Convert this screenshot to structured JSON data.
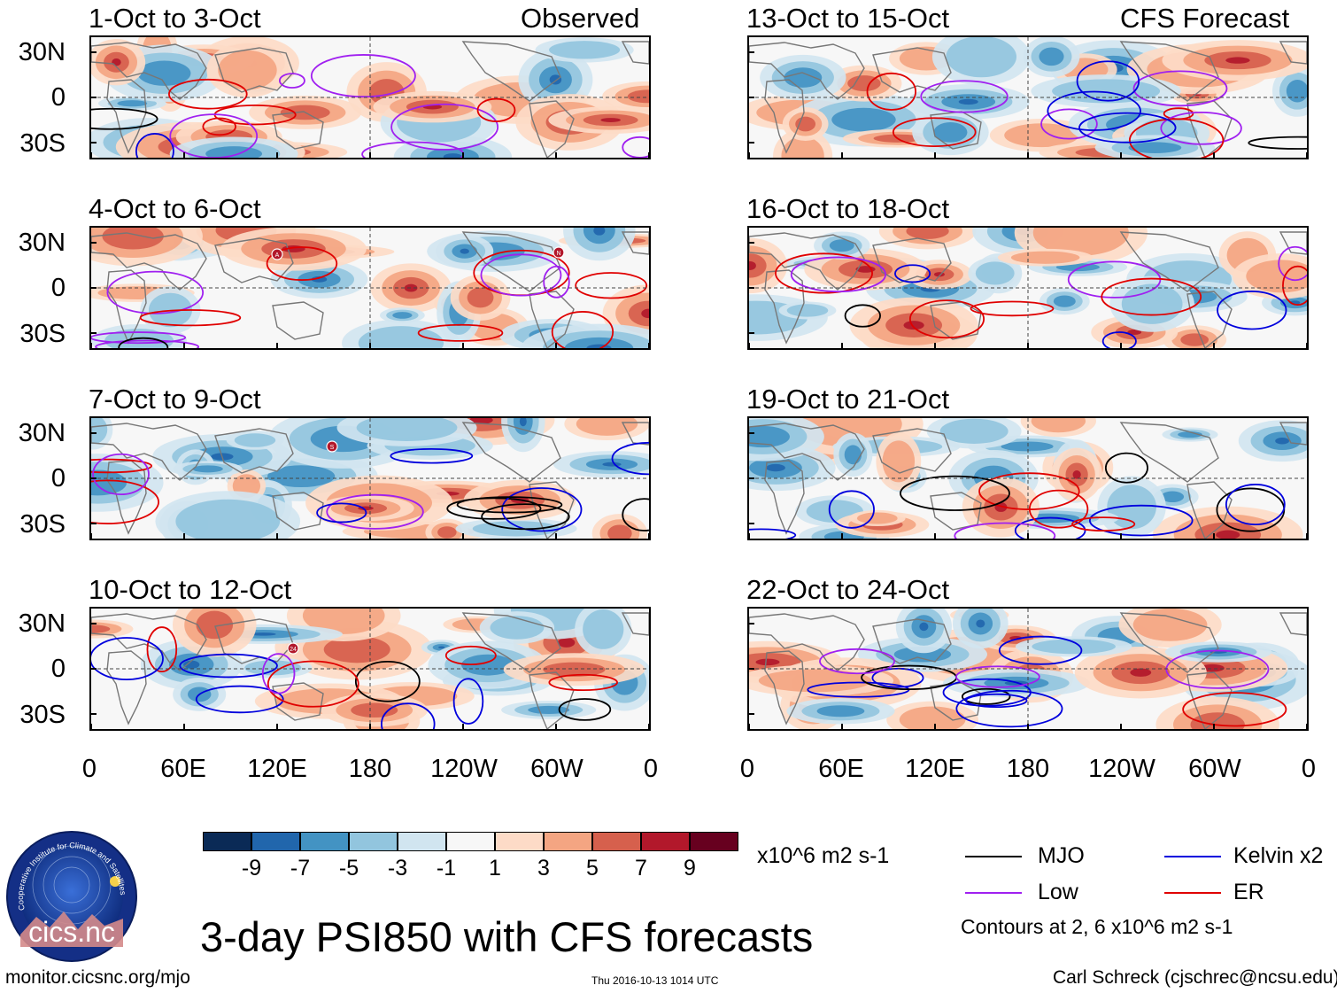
{
  "panels": {
    "observed": [
      {
        "title": "1-Oct to 3-Oct",
        "tag": "Observed"
      },
      {
        "title": "4-Oct to 6-Oct"
      },
      {
        "title": "7-Oct to 9-Oct"
      },
      {
        "title": "10-Oct to 12-Oct"
      }
    ],
    "forecast": [
      {
        "title": "13-Oct to 15-Oct",
        "tag": "CFS Forecast"
      },
      {
        "title": "16-Oct to 18-Oct"
      },
      {
        "title": "19-Oct to 21-Oct"
      },
      {
        "title": "22-Oct to 24-Oct"
      }
    ]
  },
  "axes": {
    "lat_labels": [
      "30N",
      "0",
      "30S"
    ],
    "lon_labels": [
      "0",
      "60E",
      "120E",
      "180",
      "120W",
      "60W",
      "0"
    ]
  },
  "storm_markers": [
    {
      "panel": 1,
      "label": "A"
    },
    {
      "panel": 1,
      "label": "N"
    },
    {
      "panel": 2,
      "label": "S"
    },
    {
      "panel": 3,
      "label": "24"
    }
  ],
  "colorbar": {
    "colors": [
      "#0a2a56",
      "#2166ac",
      "#4393c3",
      "#92c5de",
      "#d1e5f0",
      "#f7f7f7",
      "#fddbc7",
      "#f4a582",
      "#d6604d",
      "#b2182b",
      "#67001f"
    ],
    "labels": [
      "-9",
      "-7",
      "-5",
      "-3",
      "-1",
      "1",
      "3",
      "5",
      "7",
      "9"
    ],
    "units": "x10^6 m2 s-1"
  },
  "legend": {
    "items": [
      {
        "name": "MJO",
        "color": "#000000"
      },
      {
        "name": "Kelvin x2",
        "color": "#0000dd"
      },
      {
        "name": "Low",
        "color": "#a020f0"
      },
      {
        "name": "ER",
        "color": "#e00000"
      }
    ],
    "note": "Contours at 2, 6 x10^6 m2 s-1"
  },
  "footer": {
    "main_title": "3-day PSI850 with CFS forecasts",
    "url": "monitor.cicsnc.org/mjo",
    "timestamp": "Thu 2016-10-13 1014 UTC",
    "credit": "Carl Schreck (cjschrec@ncsu.edu)",
    "logo_text": "cics.nc",
    "logo_ring": "Cooperative Institute for Climate and Satellites"
  }
}
